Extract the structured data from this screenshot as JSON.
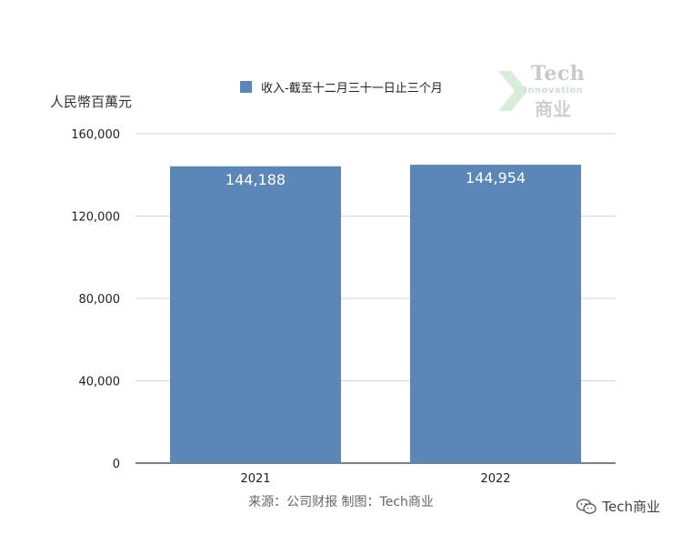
{
  "unit_label": "人民幣百萬元",
  "legend": {
    "label": "收入-截至十二月三十一日止三个月",
    "color": "#5b87b8"
  },
  "watermark": {
    "line1": "Tech",
    "line2": "Innovation",
    "line3": "商业"
  },
  "source": "来源：公司财报  制图：Tech商业",
  "footer_brand": "Tech商业",
  "chart_data": {
    "type": "bar",
    "categories": [
      "2021",
      "2022"
    ],
    "values": [
      144188,
      144954
    ],
    "data_labels": [
      "144,188",
      "144,954"
    ],
    "ylim": [
      0,
      160000
    ],
    "yticks": [
      0,
      40000,
      80000,
      120000,
      160000
    ],
    "ytick_labels": [
      "0",
      "40,000",
      "80,000",
      "120,000",
      "160,000"
    ],
    "bar_color": "#5b87b8",
    "grid": true
  }
}
